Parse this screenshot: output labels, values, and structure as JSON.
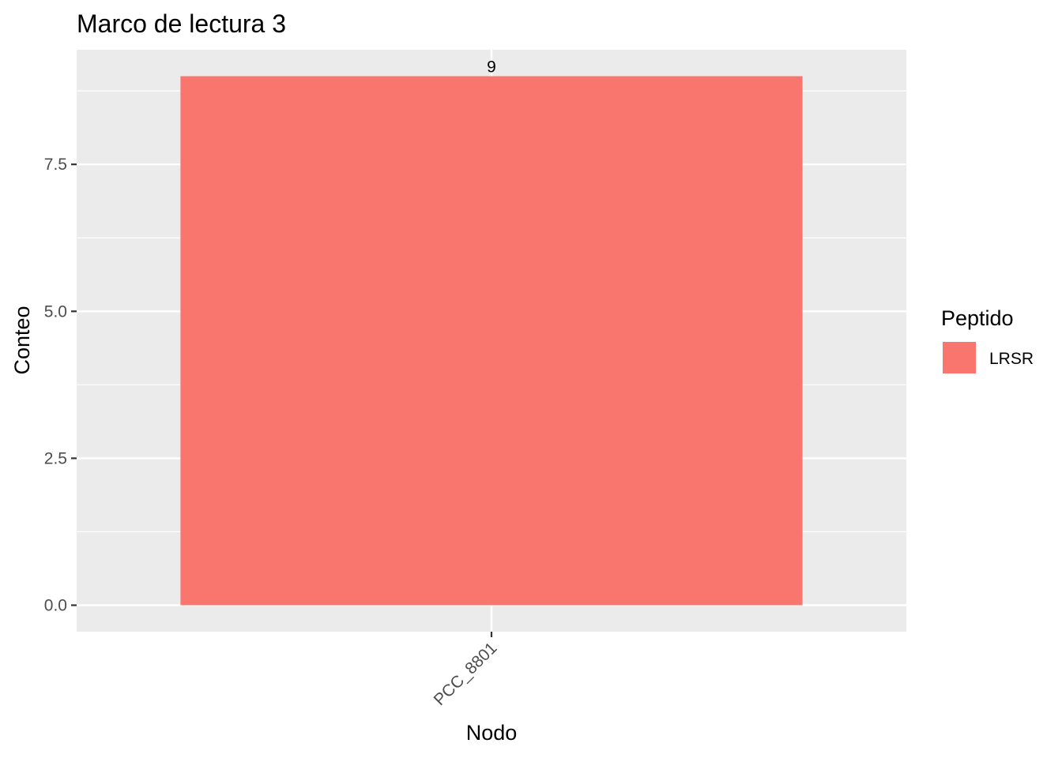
{
  "chart_data": {
    "type": "bar",
    "title": "Marco de lectura 3",
    "xlabel": "Nodo",
    "ylabel": "Conteo",
    "categories": [
      "PCC_8801"
    ],
    "series": [
      {
        "name": "LRSR",
        "values": [
          9
        ],
        "color": "#F8766D"
      }
    ],
    "data_labels": [
      "9"
    ],
    "ylim": [
      -0.45,
      9.45
    ],
    "yticks": [
      0.0,
      2.5,
      5.0,
      7.5
    ],
    "ytick_labels": [
      "0.0",
      "2.5",
      "5.0",
      "7.5"
    ],
    "grid": true,
    "panel_background": "#EBEBEB",
    "grid_color": "#FFFFFF",
    "legend": {
      "title": "Peptido",
      "position": "right"
    }
  }
}
